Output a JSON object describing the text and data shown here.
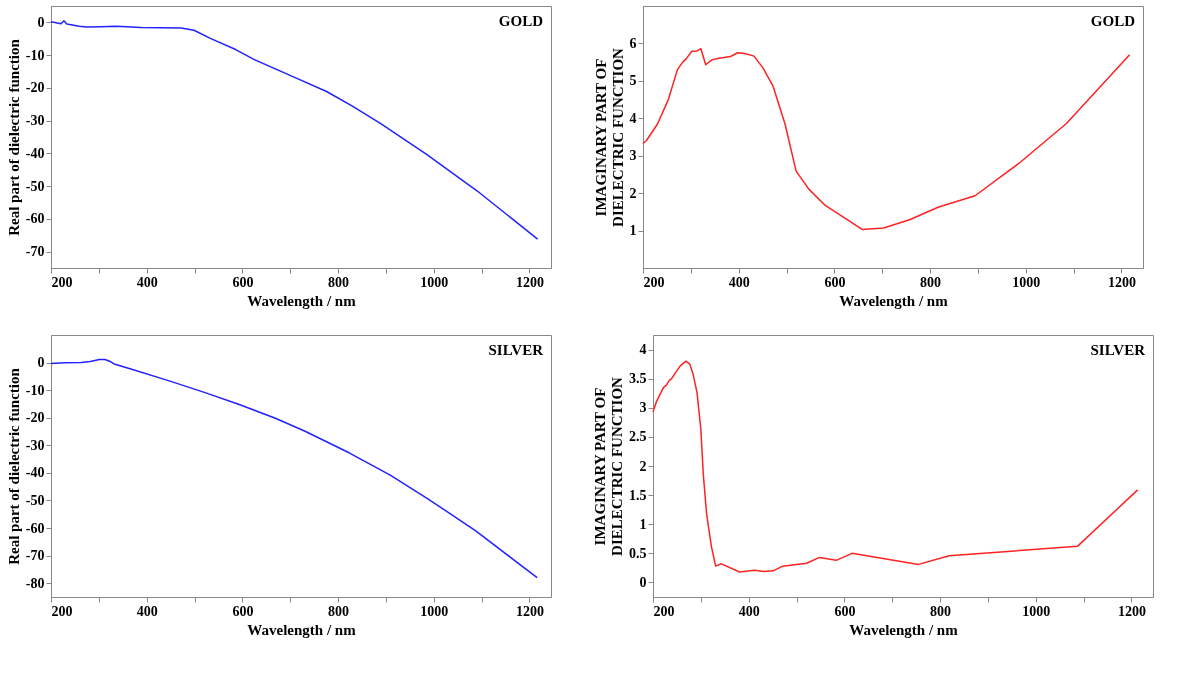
{
  "chart_data": [
    {
      "type": "line",
      "xlabel": "Wavelength / nm",
      "ylabel": "Real part of dielectric function",
      "annotations": [
        "GOLD"
      ],
      "grid": false,
      "xlim": [
        200,
        1245
      ],
      "ylim": [
        -75,
        5
      ],
      "xticks": [
        200,
        {
          "value": 300,
          "label": null
        },
        400,
        {
          "value": 500,
          "label": null
        },
        600,
        {
          "value": 700,
          "label": null
        },
        800,
        {
          "value": 900,
          "label": null
        },
        1000,
        {
          "value": 1100,
          "label": null
        },
        1200
      ],
      "yticks": [
        0,
        -10,
        -20,
        -30,
        -40,
        -50,
        -60,
        -70
      ],
      "series": [
        {
          "color": "#2222ff",
          "x": [
            200,
            221,
            227,
            233,
            259,
            274,
            305,
            335,
            358,
            388,
            472,
            499,
            533,
            586,
            624,
            708,
            776,
            829,
            890,
            985,
            1091,
            1217
          ],
          "values": [
            0.2,
            -0.4,
            0.5,
            -0.5,
            -1.2,
            -1.4,
            -1.3,
            -1.2,
            -1.3,
            -1.6,
            -1.7,
            -2.4,
            -4.9,
            -8.3,
            -11.3,
            -16.7,
            -21.1,
            -25.5,
            -31,
            -40.3,
            -51.5,
            -66.2
          ]
        }
      ]
    },
    {
      "type": "line",
      "xlabel": "Wavelength / nm",
      "ylabel": "IMAGINARY PART OF\nDIELECTRIC FUNCTION",
      "annotations": [
        "GOLD"
      ],
      "grid": false,
      "xlim": [
        200,
        1245
      ],
      "ylim": [
        0,
        7
      ],
      "xticks": [
        200,
        {
          "value": 300,
          "label": null
        },
        400,
        {
          "value": 500,
          "label": null
        },
        600,
        {
          "value": 700,
          "label": null
        },
        800,
        {
          "value": 900,
          "label": null
        },
        1000,
        {
          "value": 1100,
          "label": null
        },
        1200
      ],
      "yticks": [
        1,
        2,
        3,
        4,
        5,
        6
      ],
      "series": [
        {
          "color": "#ff2222",
          "x": [
            200,
            207,
            230,
            253,
            272,
            283,
            291,
            302,
            313,
            321,
            331,
            344,
            356,
            383,
            398,
            413,
            432,
            451,
            472,
            497,
            520,
            547,
            581,
            658,
            703,
            757,
            818,
            894,
            986,
            1085,
            1217
          ],
          "values": [
            3.33,
            3.4,
            3.84,
            4.5,
            5.3,
            5.5,
            5.6,
            5.79,
            5.8,
            5.86,
            5.43,
            5.56,
            5.6,
            5.65,
            5.75,
            5.73,
            5.66,
            5.34,
            4.85,
            3.84,
            2.59,
            2.1,
            1.67,
            1.03,
            1.07,
            1.29,
            1.63,
            1.93,
            2.8,
            3.86,
            5.7
          ]
        }
      ]
    },
    {
      "type": "line",
      "xlabel": "Wavelength / nm",
      "ylabel": "Real part of dielectric function",
      "annotations": [
        "SILVER"
      ],
      "grid": false,
      "xlim": [
        200,
        1245
      ],
      "ylim": [
        -85,
        10
      ],
      "xticks": [
        200,
        {
          "value": 300,
          "label": null
        },
        400,
        {
          "value": 500,
          "label": null
        },
        600,
        {
          "value": 700,
          "label": null
        },
        800,
        {
          "value": 900,
          "label": null
        },
        1000,
        {
          "value": 1100,
          "label": null
        },
        1200
      ],
      "yticks": [
        0,
        -10,
        -20,
        -30,
        -40,
        -50,
        -60,
        -70,
        -80
      ],
      "series": [
        {
          "color": "#2222ff",
          "x": [
            200,
            228,
            263,
            282,
            301,
            313,
            325,
            332,
            367,
            452,
            522,
            592,
            669,
            731,
            824,
            909,
            986,
            1087,
            1216
          ],
          "values": [
            -0.3,
            -0.1,
            0,
            0.4,
            1.1,
            1.1,
            0.3,
            -0.5,
            -2.3,
            -6.9,
            -10.9,
            -15.1,
            -20.2,
            -24.9,
            -32.8,
            -40.8,
            -49.2,
            -60.9,
            -78
          ]
        }
      ]
    },
    {
      "type": "line",
      "xlabel": "Wavelength / nm",
      "ylabel": "IMAGINARY PART OF\nDIELECTRIC FUNCTION",
      "annotations": [
        "SILVER"
      ],
      "grid": false,
      "xlim": [
        200,
        1245
      ],
      "ylim": [
        -0.25,
        4.25
      ],
      "xticks": [
        200,
        {
          "value": 300,
          "label": null
        },
        400,
        {
          "value": 500,
          "label": null
        },
        600,
        {
          "value": 700,
          "label": null
        },
        800,
        {
          "value": 900,
          "label": null
        },
        1000,
        {
          "value": 1100,
          "label": null
        },
        1200
      ],
      "yticks": [
        0,
        0.5,
        1,
        1.5,
        2,
        2.5,
        3,
        3.5,
        4
      ],
      "series": [
        {
          "color": "#ff2222",
          "x": [
            200,
            207,
            222,
            228,
            234,
            239,
            246,
            257,
            269,
            277,
            284,
            292,
            300,
            305,
            312,
            322,
            331,
            343,
            381,
            412,
            432,
            451,
            471,
            521,
            548,
            583,
            616,
            755,
            819,
            1087,
            1213
          ],
          "values": [
            2.93,
            3.1,
            3.35,
            3.39,
            3.47,
            3.5,
            3.59,
            3.72,
            3.8,
            3.75,
            3.57,
            3.26,
            2.63,
            1.87,
            1.18,
            0.62,
            0.28,
            0.32,
            0.18,
            0.21,
            0.19,
            0.2,
            0.28,
            0.33,
            0.43,
            0.38,
            0.5,
            0.31,
            0.46,
            0.62,
            1.59
          ]
        }
      ]
    }
  ]
}
